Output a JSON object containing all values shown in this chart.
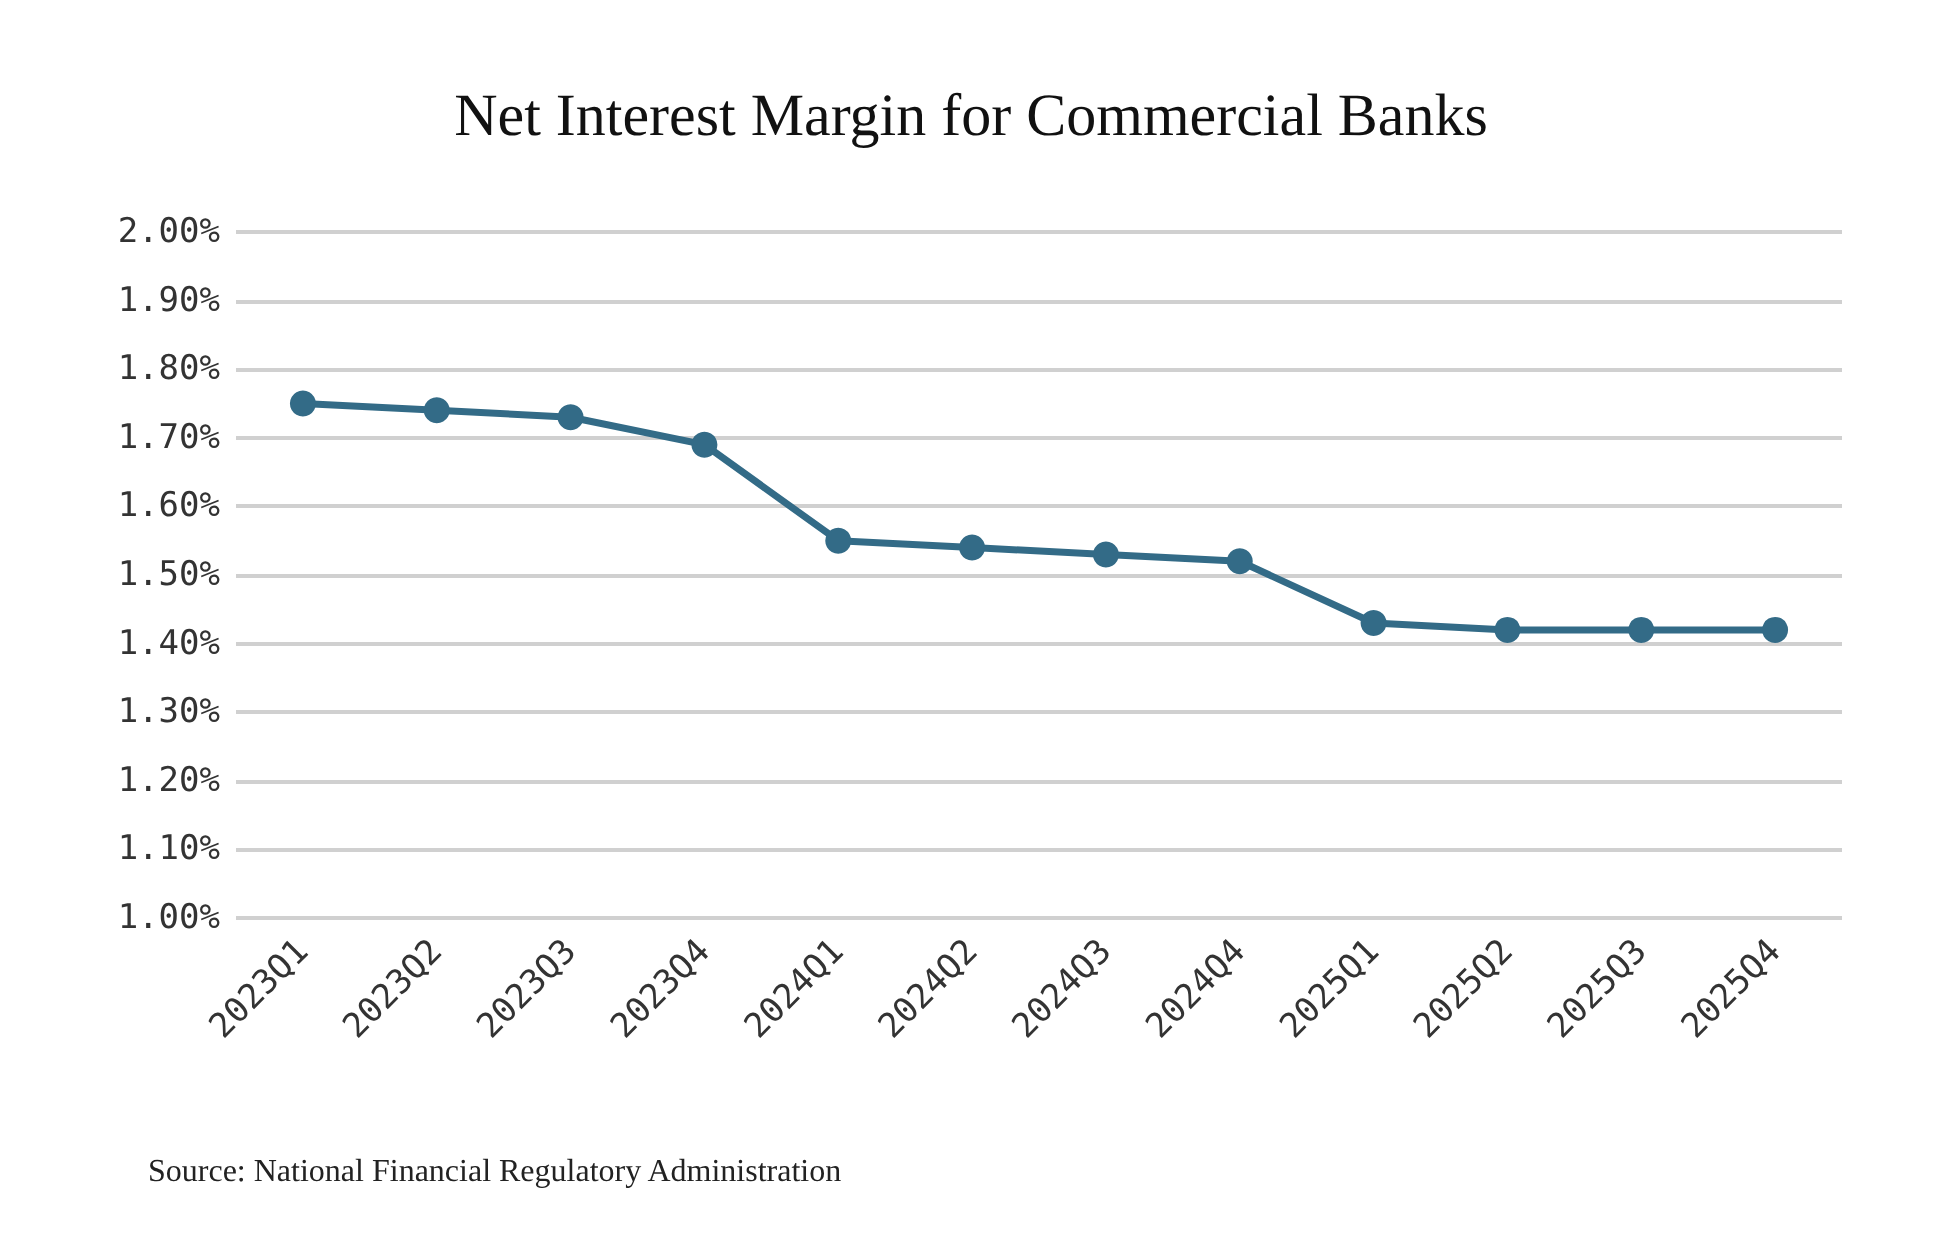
{
  "chart_data": {
    "type": "line",
    "title": "Net Interest Margin for Commercial Banks",
    "categories": [
      "2023Q1",
      "2023Q2",
      "2023Q3",
      "2023Q4",
      "2024Q1",
      "2024Q2",
      "2024Q3",
      "2024Q4",
      "2025Q1",
      "2025Q2",
      "2025Q3",
      "2025Q4"
    ],
    "series": [
      {
        "color": "#336b87",
        "values": [
          1.75,
          1.74,
          1.73,
          1.69,
          1.55,
          1.54,
          1.53,
          1.52,
          1.43,
          1.42,
          1.42,
          1.42
        ]
      }
    ],
    "ylim": [
      1.0,
      2.0
    ],
    "yticks": [
      {
        "value": 1.0,
        "label": "1.00%"
      },
      {
        "value": 1.1,
        "label": "1.10%"
      },
      {
        "value": 1.2,
        "label": "1.20%"
      },
      {
        "value": 1.3,
        "label": "1.30%"
      },
      {
        "value": 1.4,
        "label": "1.40%"
      },
      {
        "value": 1.5,
        "label": "1.50%"
      },
      {
        "value": 1.6,
        "label": "1.60%"
      },
      {
        "value": 1.7,
        "label": "1.70%"
      },
      {
        "value": 1.8,
        "label": "1.80%"
      },
      {
        "value": 1.9,
        "label": "1.90%"
      },
      {
        "value": 2.0,
        "label": "2.00%"
      }
    ],
    "grid": "y",
    "marker": "circle",
    "line_style": "solid",
    "annotations": [
      "Source: National Financial Regulatory Administration"
    ]
  }
}
